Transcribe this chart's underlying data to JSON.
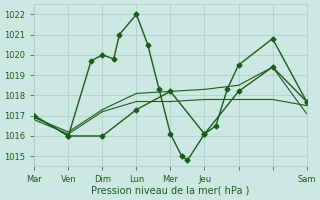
{
  "background_color": "#cde8e2",
  "grid_color": "#a8cdc6",
  "line_color": "#1a5c1a",
  "xlabel": "Pression niveau de la mer( hPa )",
  "ylim": [
    1014.5,
    1022.5
  ],
  "yticks": [
    1015,
    1016,
    1017,
    1018,
    1019,
    1020,
    1021,
    1022
  ],
  "xlim": [
    0,
    24
  ],
  "xtick_positions": [
    0,
    3,
    6,
    9,
    12,
    15,
    18,
    21,
    24
  ],
  "xtick_labels": [
    "Mar",
    "Ven",
    "Dim",
    "Lun",
    "Mer",
    "Jeu",
    "",
    "",
    "Sam"
  ],
  "series1_x": [
    0,
    3,
    5,
    6,
    7,
    7.5,
    9,
    10,
    11,
    12,
    13,
    13.5,
    15,
    16,
    17,
    18,
    21,
    24
  ],
  "series1_y": [
    1017.0,
    1016.0,
    1019.7,
    1020.0,
    1019.8,
    1021.0,
    1022.0,
    1020.5,
    1018.3,
    1016.1,
    1015.0,
    1014.8,
    1016.1,
    1016.5,
    1018.3,
    1019.5,
    1020.8,
    1017.7
  ],
  "series2_x": [
    0,
    3,
    6,
    9,
    12,
    15,
    18,
    21,
    24
  ],
  "series2_y": [
    1016.8,
    1016.1,
    1017.2,
    1017.7,
    1017.7,
    1017.8,
    1017.8,
    1017.8,
    1017.5
  ],
  "series3_x": [
    0,
    3,
    6,
    9,
    12,
    15,
    18,
    21,
    24
  ],
  "series3_y": [
    1016.9,
    1016.2,
    1017.3,
    1018.1,
    1018.2,
    1018.3,
    1018.5,
    1019.4,
    1017.1
  ],
  "series4_x": [
    0,
    3,
    6,
    9,
    12,
    15,
    18,
    21,
    24
  ],
  "series4_y": [
    1017.0,
    1016.0,
    1016.0,
    1017.3,
    1018.2,
    1016.1,
    1018.2,
    1019.4,
    1017.7
  ],
  "marker": "D",
  "markersize": 2.5,
  "linewidth_main": 1.0,
  "linewidth_flat": 0.8,
  "xlabel_fontsize": 7,
  "tick_fontsize": 6
}
